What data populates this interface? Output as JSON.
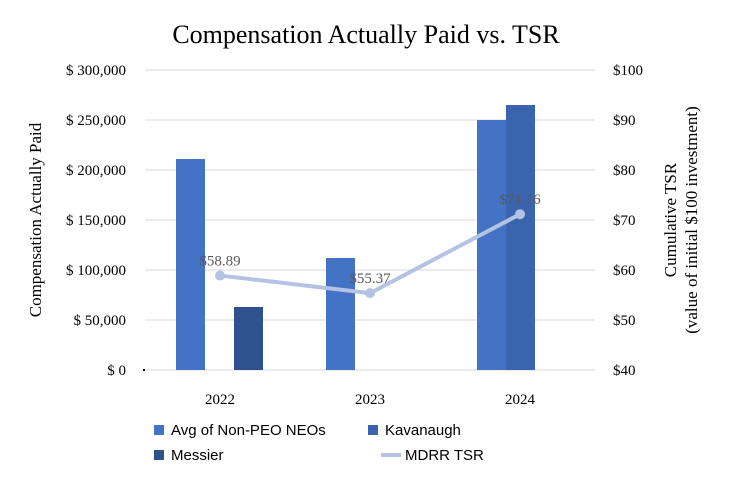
{
  "chart_data": {
    "type": "bar",
    "title": "Compensation Actually Paid vs. TSR",
    "ylabel": "Compensation Actually Paid",
    "y2label_line1": "Cumulative TSR",
    "y2label_line2": "(value of initial $100 investment)",
    "categories": [
      "2022",
      "2023",
      "2024"
    ],
    "ylim": [
      0,
      300000
    ],
    "y2lim": [
      40,
      100
    ],
    "y_ticks": [
      "$ 0",
      "$ 50,000",
      "$ 100,000",
      "$ 150,000",
      "$ 200,000",
      "$ 250,000",
      "$ 300,000"
    ],
    "y2_ticks": [
      "$40",
      "$50",
      "$60",
      "$70",
      "$80",
      "$90",
      "$100"
    ],
    "series": [
      {
        "name": "Avg of Non-PEO NEOs",
        "color": "#4472c4",
        "values": [
          211000,
          112000,
          250000
        ]
      },
      {
        "name": "Messier",
        "color": "#2f528f",
        "values": [
          63000,
          null,
          null
        ]
      },
      {
        "name": "Kavanaugh",
        "color": "#3a64ad",
        "values": [
          null,
          null,
          265000
        ]
      }
    ],
    "line_series": {
      "name": "MDRR TSR",
      "color": "#b4c3e3",
      "values": [
        58.89,
        55.37,
        71.16
      ],
      "labels": [
        "$58.89",
        "$55.37",
        "$71.16"
      ]
    },
    "legend": [
      {
        "name": "Avg of Non-PEO NEOs",
        "kind": "bar",
        "color": "#4472c4"
      },
      {
        "name": "Kavanaugh",
        "kind": "bar",
        "color": "#3a64ad"
      },
      {
        "name": "Messier",
        "kind": "bar",
        "color": "#2f528f"
      },
      {
        "name": "MDRR TSR",
        "kind": "line",
        "color": "#b4c3e3"
      }
    ],
    "legend_position": "bottom"
  }
}
